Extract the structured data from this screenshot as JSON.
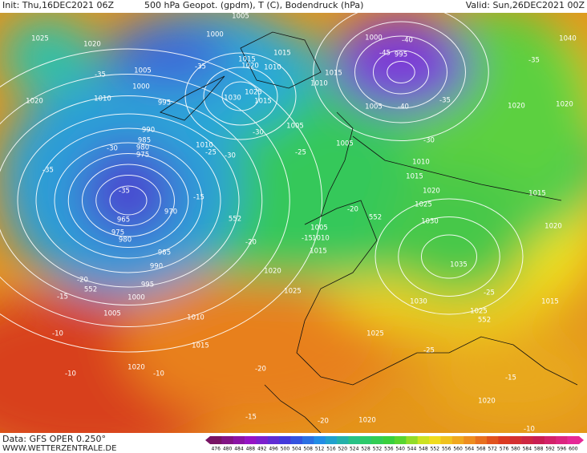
{
  "header": {
    "init": "Init: Thu,16DEC2021 06Z",
    "title": "500 hPa Geopot. (gpdm), T (C), Bodendruck (hPa)",
    "valid": "Valid: Sun,26DEC2021 00Z"
  },
  "footer": {
    "data": "Data: GFS OPER 0.250°",
    "site": "WWW.WETTERZENTRALE.DE"
  },
  "scale": {
    "labels": [
      476,
      480,
      484,
      488,
      492,
      496,
      500,
      504,
      508,
      512,
      516,
      520,
      524,
      528,
      532,
      536,
      540,
      544,
      548,
      552,
      556,
      560,
      564,
      568,
      572,
      576,
      580,
      584,
      588,
      592,
      596,
      600
    ]
  },
  "map": {
    "labels": [
      "1005",
      "1000",
      "1025",
      "1020",
      "-35",
      "1005",
      "1000",
      "1010",
      "995",
      "1020",
      "1015",
      "1020",
      "1015",
      "1010",
      "1030",
      "1025",
      "1015",
      "-35",
      "1010",
      "1015",
      "1000",
      "-40",
      "-45",
      "995",
      "1005",
      "-40",
      "-35",
      "1040",
      "-35",
      "1020",
      "1020",
      "990",
      "985",
      "980",
      "975",
      "-30",
      "-35",
      "-35",
      "1010",
      "-25",
      "-30",
      "-30",
      "1005",
      "-25",
      "1005",
      "-30",
      "1010",
      "1015",
      "1020",
      "1025",
      "1030",
      "1015",
      "1020",
      "-15",
      "970",
      "965",
      "975",
      "980",
      "552",
      "-20",
      "985",
      "990",
      "995",
      "1000",
      "-20",
      "552",
      "-15",
      "1005",
      "1010",
      "1015",
      "-10",
      "1020",
      "-10",
      "-10",
      "1020",
      "1025",
      "1005",
      "1010",
      "-15",
      "1015",
      "-20",
      "552",
      "1030",
      "1035",
      "-25",
      "1025",
      "552",
      "1015",
      "1025",
      "-25",
      "-20",
      "-15",
      "-20",
      "1020",
      "-15",
      "1020",
      "-10"
    ]
  }
}
